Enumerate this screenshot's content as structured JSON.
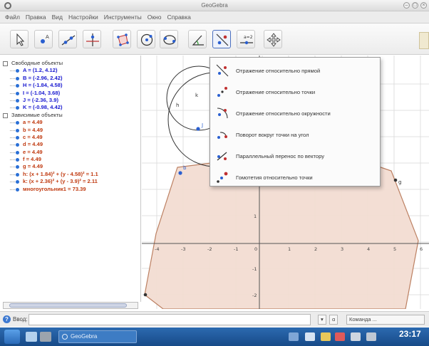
{
  "window": {
    "title": "GeoGebra",
    "controls": [
      "–",
      "□",
      "×"
    ]
  },
  "menu": [
    "Файл",
    "Правка",
    "Вид",
    "Настройки",
    "Инструменты",
    "Окно",
    "Справка"
  ],
  "toolbar": {
    "tools": [
      {
        "name": "move-tool",
        "icon": "arrow-cursor-icon"
      },
      {
        "name": "point-tool",
        "icon": "point-icon"
      },
      {
        "name": "line-tool",
        "icon": "line-icon"
      },
      {
        "name": "perpendicular-tool",
        "icon": "perpendicular-icon"
      },
      {
        "name": "polygon-tool",
        "icon": "polygon-icon"
      },
      {
        "name": "circle-tool",
        "icon": "circle-icon"
      },
      {
        "name": "conic-tool",
        "icon": "conic-icon"
      },
      {
        "name": "angle-tool",
        "icon": "angle-icon"
      },
      {
        "name": "reflect-tool",
        "icon": "reflect-icon",
        "active": true
      },
      {
        "name": "slider-tool",
        "icon": "slider-icon",
        "label": "a=2"
      },
      {
        "name": "move-view-tool",
        "icon": "move-view-icon"
      }
    ]
  },
  "algebra": {
    "free_header": "Свободные объекты",
    "free_items": [
      "A = (1.2, 4.12)",
      "B = (-2.96, 2.42)",
      "H = (-1.84, 4.58)",
      "I = (-1.04, 3.68)",
      "J = (-2.36, 3.9)",
      "K = (-0.98, 4.42)"
    ],
    "dep_header": "Зависимые объекты",
    "dep_items": [
      "a = 4.49",
      "b = 4.49",
      "c = 4.49",
      "d = 4.49",
      "e = 4.49",
      "f = 4.49",
      "g = 4.49",
      "h: (x + 1.84)² + (y - 4.58)² = 1.1",
      "k: (x + 2.36)² + (y - 3.9)² = 2.11",
      "многоугольник1 = 73.39"
    ]
  },
  "graphics": {
    "x_ticks": [
      "-4",
      "-3",
      "-2",
      "-1",
      "0",
      "1",
      "2",
      "3",
      "4",
      "5",
      "6"
    ],
    "y_ticks": [
      "1",
      "-1",
      "-2"
    ],
    "labels": {
      "h": "h",
      "k": "k",
      "j": "J",
      "b": "b",
      "q": "g"
    },
    "polygon_fill": "#f3ddd2",
    "polygon_stroke": "#b97a5a"
  },
  "dropdown": {
    "items": [
      {
        "label": "Отражение относительно прямой",
        "icon": "reflect-line-icon"
      },
      {
        "label": "Отражение относительно точки",
        "icon": "reflect-point-icon"
      },
      {
        "label": "Отражение относительно окружности",
        "icon": "reflect-circle-icon"
      },
      {
        "label": "Поворот вокруг точки на угол",
        "icon": "rotate-icon"
      },
      {
        "label": "Параллельный перенос по вектору",
        "icon": "translate-icon"
      },
      {
        "label": "Гомотетия относительно точки",
        "icon": "dilate-icon"
      }
    ]
  },
  "inputbar": {
    "label": "Ввод:",
    "value": "",
    "btn_a": "α",
    "command": "Команда ..."
  },
  "taskbar": {
    "task_label": "GeoGebra",
    "clock": "23:17"
  }
}
